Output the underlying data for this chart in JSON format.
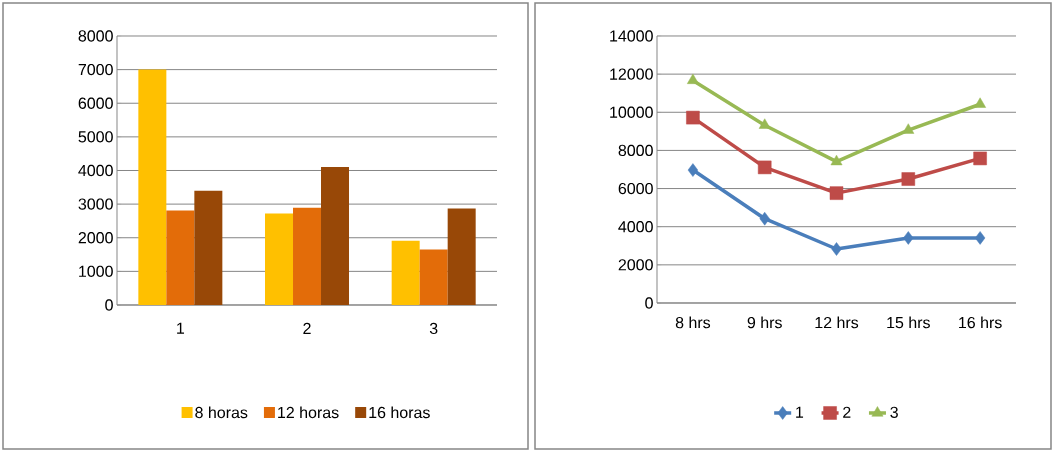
{
  "chart_data": [
    {
      "type": "bar",
      "categories": [
        "1",
        "2",
        "3"
      ],
      "ylim": [
        0,
        8000
      ],
      "yticks": [
        0,
        1000,
        2000,
        3000,
        4000,
        5000,
        6000,
        7000,
        8000
      ],
      "grid": "y",
      "legend": "bottom",
      "series": [
        {
          "name": "8  horas",
          "color": "#ffc000",
          "values": [
            7000,
            2720,
            1910
          ]
        },
        {
          "name": "12 horas",
          "color": "#e36c09",
          "values": [
            2810,
            2890,
            1650
          ]
        },
        {
          "name": "16 horas",
          "color": "#984807",
          "values": [
            3400,
            4100,
            2870
          ]
        }
      ]
    },
    {
      "type": "line",
      "categories": [
        "8 hrs",
        "9 hrs",
        "12 hrs",
        "15 hrs",
        "16 hrs"
      ],
      "ylim": [
        0,
        14000
      ],
      "yticks": [
        0,
        2000,
        4000,
        6000,
        8000,
        10000,
        12000,
        14000
      ],
      "grid": "y",
      "legend": "bottom",
      "series": [
        {
          "name": "1",
          "color": "#4a7ebb",
          "marker": "diamond",
          "values": [
            6970,
            4420,
            2830,
            3410,
            3410
          ]
        },
        {
          "name": "2",
          "color": "#be4b48",
          "marker": "square",
          "values": [
            9720,
            7110,
            5760,
            6500,
            7580
          ]
        },
        {
          "name": "3",
          "color": "#98b954",
          "marker": "triangle",
          "values": [
            11670,
            9320,
            7410,
            9060,
            10420
          ]
        }
      ]
    }
  ]
}
